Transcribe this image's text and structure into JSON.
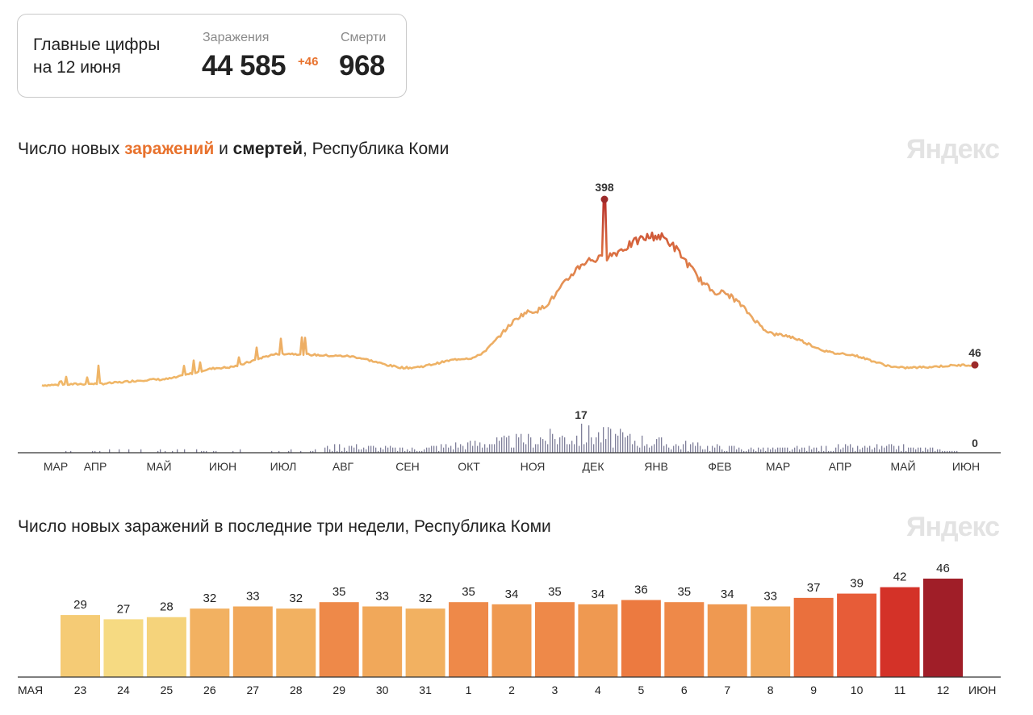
{
  "summary": {
    "header_line1": "Главные цифры",
    "header_line2": "на 12 июня",
    "infections_label": "Заражения",
    "infections_value": "44 585",
    "infections_delta": "+46",
    "deaths_label": "Смерти",
    "deaths_value": "968"
  },
  "colors": {
    "accent": "#e8722d",
    "death_bar": "#7f7f9a",
    "line_light": "#f0b868",
    "line_dark": "#c7402c"
  },
  "chart1": {
    "title_prefix": "Число новых ",
    "title_infections": "заражений",
    "title_mid": " и ",
    "title_deaths": "смертей",
    "title_suffix": ", Республика Коми",
    "brand": "Яндекс"
  },
  "chart2": {
    "title": "Число новых заражений в последние три недели, Республика Коми",
    "brand": "Яндекс"
  },
  "chart_data": [
    {
      "type": "line",
      "title": "Число новых заражений и смертей, Республика Коми",
      "x_months": [
        "МАР",
        "АПР",
        "МАЙ",
        "ИЮН",
        "ИЮЛ",
        "АВГ",
        "СЕН",
        "ОКТ",
        "НОЯ",
        "ДЕК",
        "ЯНВ",
        "ФЕВ",
        "МАР",
        "АПР",
        "МАЙ",
        "ИЮН"
      ],
      "series": [
        {
          "name": "Заражения (в день)",
          "monthly_approx": [
            3,
            6,
            15,
            40,
            70,
            65,
            40,
            60,
            160,
            270,
            320,
            200,
            110,
            70,
            40,
            46
          ],
          "peak": 398,
          "last": 46,
          "peak_label": "398",
          "last_label": "46"
        },
        {
          "name": "Смерти (в день)",
          "monthly_approx": [
            0,
            1,
            2,
            1,
            1,
            4,
            2,
            5,
            8,
            11,
            6,
            3,
            2,
            3,
            3,
            0
          ],
          "peak": 17,
          "last": 0,
          "peak_label": "17",
          "last_label": "0"
        }
      ]
    },
    {
      "type": "bar",
      "title": "Число новых заражений в последние три недели, Республика Коми",
      "start_month": "МАЯ",
      "end_month": "ИЮН",
      "categories": [
        "23",
        "24",
        "25",
        "26",
        "27",
        "28",
        "29",
        "30",
        "31",
        "1",
        "2",
        "3",
        "4",
        "5",
        "6",
        "7",
        "8",
        "9",
        "10",
        "11",
        "12"
      ],
      "weekend": [
        true,
        false,
        false,
        false,
        false,
        false,
        true,
        true,
        false,
        false,
        false,
        false,
        false,
        true,
        true,
        false,
        false,
        false,
        false,
        false,
        true
      ],
      "values": [
        29,
        27,
        28,
        32,
        33,
        32,
        35,
        33,
        32,
        35,
        34,
        35,
        34,
        36,
        35,
        34,
        33,
        37,
        39,
        42,
        46
      ],
      "value_labels": [
        "29",
        "27",
        "28",
        "32",
        "33",
        "32",
        "35",
        "33",
        "32",
        "35",
        "34",
        "35",
        "34",
        "36",
        "35",
        "34",
        "33",
        "37",
        "39",
        "42",
        "46"
      ]
    }
  ]
}
